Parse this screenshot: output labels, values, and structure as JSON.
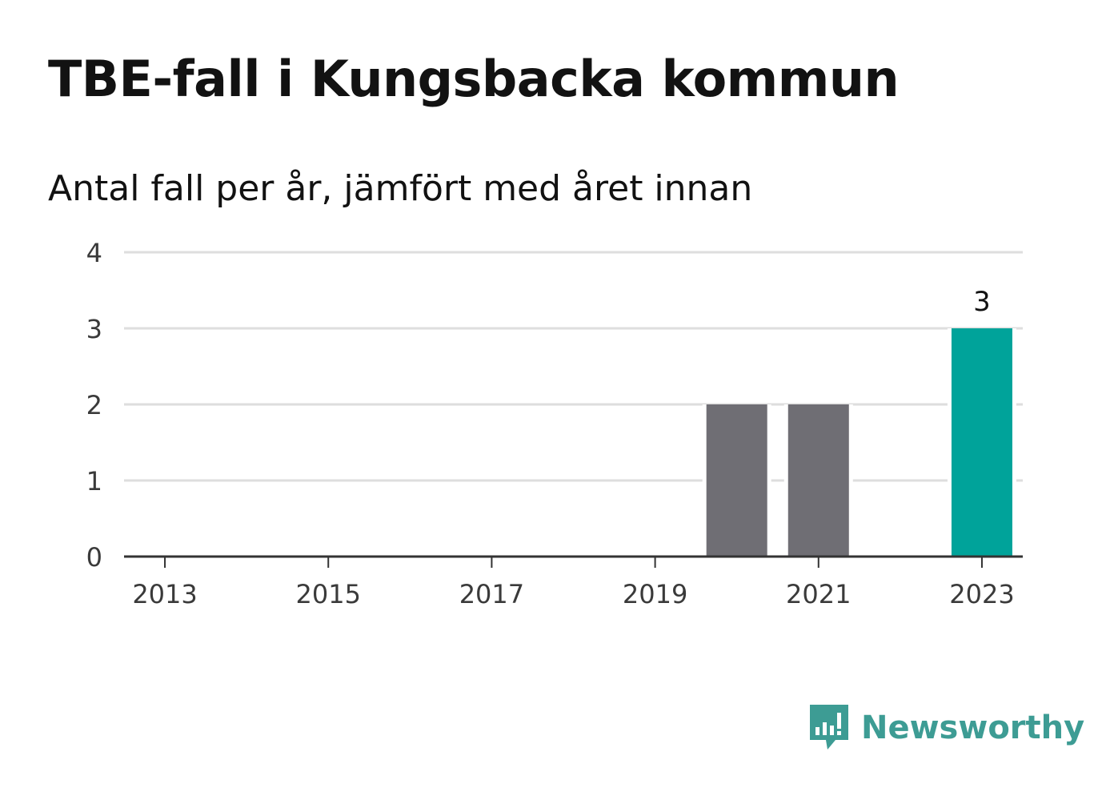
{
  "title": "TBE-fall i Kungsbacka kommun",
  "subtitle": "Antal fall per år, jämfört med året innan",
  "brand": {
    "name": "Newsworthy",
    "color": "#3d9c94",
    "icon": "newsworthy-logo-icon"
  },
  "colors": {
    "previous": "#6f6e74",
    "current": "#00a39a",
    "grid": "#dedede",
    "axis": "#333333"
  },
  "chart_data": {
    "type": "bar",
    "categories": [
      "2013",
      "2014",
      "2015",
      "2016",
      "2017",
      "2018",
      "2019",
      "2020",
      "2021",
      "2022",
      "2023"
    ],
    "x_tick_labels": [
      "2013",
      "2015",
      "2017",
      "2019",
      "2021",
      "2023"
    ],
    "y_ticks": [
      "0",
      "1",
      "2",
      "3",
      "4"
    ],
    "values": [
      0,
      0,
      0,
      0,
      0,
      0,
      0,
      2,
      2,
      0,
      3
    ],
    "highlight_category": "2023",
    "data_labels": [
      {
        "category": "2023",
        "text": "3"
      }
    ],
    "ylim": [
      0,
      4
    ],
    "grid": true,
    "xlabel": "",
    "ylabel": ""
  }
}
